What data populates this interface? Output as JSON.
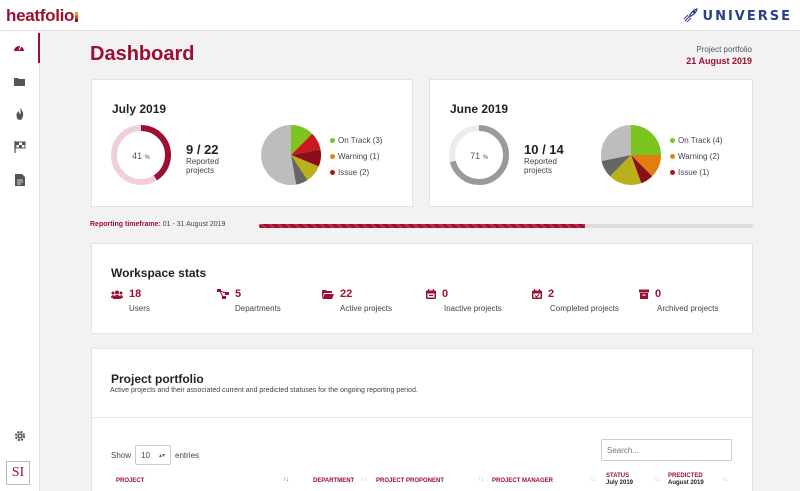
{
  "header": {
    "logo": "heatfolio",
    "brand": "UNIVERSE"
  },
  "sidebar": {
    "items": [
      {
        "name": "dashboard-icon"
      },
      {
        "name": "folder-icon"
      },
      {
        "name": "flame-icon"
      },
      {
        "name": "checkered-flag-icon"
      },
      {
        "name": "document-icon"
      },
      {
        "name": "gear-icon"
      }
    ],
    "badge": "SI"
  },
  "page": {
    "title": "Dashboard",
    "portfolio_label": "Project portfolio",
    "portfolio_date": "21 August 2019"
  },
  "july": {
    "title": "July 2019",
    "percent": "41",
    "percent_symbol": "%",
    "progress": 0.41,
    "ratio": "9 / 22",
    "reported_label": "Reported",
    "projects_label": "projects",
    "legend": [
      "On Track (3)",
      "Warning (1)",
      "Issue (2)"
    ]
  },
  "june": {
    "title": "June 2019",
    "percent": "71",
    "percent_symbol": "%",
    "progress": 0.71,
    "ratio": "10 / 14",
    "reported_label": "Reported",
    "projects_label": "projects",
    "legend": [
      "On Track (4)",
      "Warning (2)",
      "Issue (1)"
    ]
  },
  "timeframe": {
    "label": "Reporting timeframe:",
    "value": "01 - 31 August 2019",
    "progress": 0.66
  },
  "workspace": {
    "title": "Workspace stats",
    "stats": [
      {
        "value": "18",
        "label": "Users",
        "icon": "users-icon"
      },
      {
        "value": "5",
        "label": "Departments",
        "icon": "sitemap-icon"
      },
      {
        "value": "22",
        "label": "Active projects",
        "icon": "folder-icon"
      },
      {
        "value": "0",
        "label": "Inactive projects",
        "icon": "calendar-icon"
      },
      {
        "value": "2",
        "label": "Completed projects",
        "icon": "calendar-check-icon"
      },
      {
        "value": "0",
        "label": "Archived projects",
        "icon": "archive-icon"
      }
    ]
  },
  "portfolio": {
    "title": "Project portfolio",
    "subtitle": "Active projects and their associated current and predicted statuses for the ongoing reporting period.",
    "show_label": "Show",
    "entries_value": "10",
    "entries_label": "entries",
    "search_placeholder": "Search...",
    "columns": {
      "project": "PROJECT",
      "department": "DEPARTMENT",
      "proponent": "PROJECT PROPONENT",
      "manager": "PROJECT MANAGER",
      "status": "STATUS",
      "status_sub": "July 2019",
      "predicted": "PREDICTED",
      "predicted_sub": "August 2019"
    }
  },
  "colors": {
    "accent": "#9b1030",
    "on_track": "#7cc41f",
    "warning": "#d98a14",
    "issue": "#b3131f",
    "gray": "#bdbdbd"
  }
}
